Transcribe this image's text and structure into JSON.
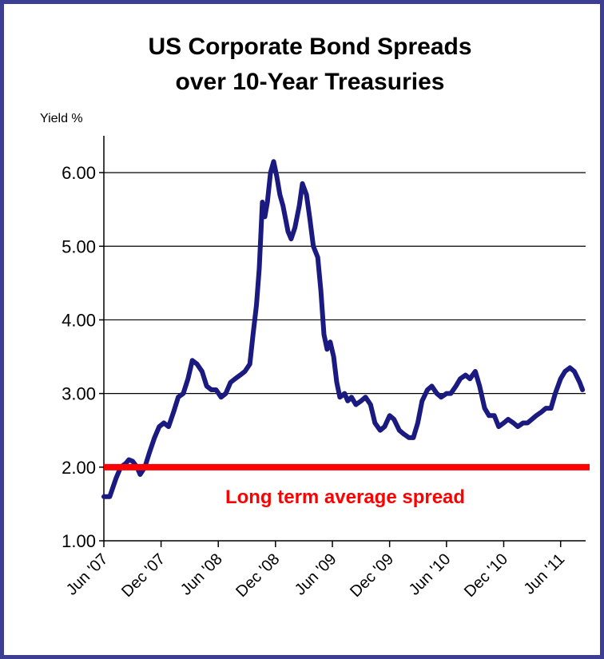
{
  "chart_data": {
    "type": "line",
    "title_line1": "US Corporate Bond Spreads",
    "title_line2": "over 10-Year Treasuries",
    "ylabel": "Yield %",
    "xlabel": "",
    "ylim": [
      1.0,
      6.5
    ],
    "yticks": [
      "1.00",
      "2.00",
      "3.00",
      "4.00",
      "5.00",
      "6.00"
    ],
    "xticks": [
      "Jun '07",
      "Dec '07",
      "Jun '08",
      "Dec '08",
      "Jun '09",
      "Dec '09",
      "Jun '10",
      "Dec '10",
      "Jun '11"
    ],
    "grid": true,
    "series": [
      {
        "color": "#1a1a80",
        "points": [
          [
            "2007-06-01",
            1.6
          ],
          [
            "2007-06-20",
            1.6
          ],
          [
            "2007-07-10",
            1.85
          ],
          [
            "2007-07-25",
            2.0
          ],
          [
            "2007-08-10",
            2.05
          ],
          [
            "2007-08-20",
            2.1
          ],
          [
            "2007-09-01",
            2.08
          ],
          [
            "2007-09-15",
            2.0
          ],
          [
            "2007-09-25",
            1.9
          ],
          [
            "2007-10-10",
            2.0
          ],
          [
            "2007-10-25",
            2.2
          ],
          [
            "2007-11-10",
            2.4
          ],
          [
            "2007-11-25",
            2.55
          ],
          [
            "2007-12-10",
            2.6
          ],
          [
            "2007-12-25",
            2.55
          ],
          [
            "2008-01-10",
            2.75
          ],
          [
            "2008-01-25",
            2.95
          ],
          [
            "2008-02-10",
            3.0
          ],
          [
            "2008-02-25",
            3.2
          ],
          [
            "2008-03-10",
            3.45
          ],
          [
            "2008-03-25",
            3.4
          ],
          [
            "2008-04-10",
            3.3
          ],
          [
            "2008-04-25",
            3.1
          ],
          [
            "2008-05-10",
            3.05
          ],
          [
            "2008-05-25",
            3.05
          ],
          [
            "2008-06-10",
            2.95
          ],
          [
            "2008-06-25",
            3.0
          ],
          [
            "2008-07-10",
            3.15
          ],
          [
            "2008-07-25",
            3.2
          ],
          [
            "2008-08-10",
            3.25
          ],
          [
            "2008-08-25",
            3.3
          ],
          [
            "2008-09-10",
            3.4
          ],
          [
            "2008-09-20",
            3.8
          ],
          [
            "2008-10-01",
            4.2
          ],
          [
            "2008-10-10",
            4.7
          ],
          [
            "2008-10-20",
            5.6
          ],
          [
            "2008-10-28",
            5.4
          ],
          [
            "2008-11-05",
            5.6
          ],
          [
            "2008-11-15",
            6.0
          ],
          [
            "2008-11-25",
            6.15
          ],
          [
            "2008-12-05",
            5.95
          ],
          [
            "2008-12-15",
            5.7
          ],
          [
            "2008-12-25",
            5.55
          ],
          [
            "2009-01-10",
            5.2
          ],
          [
            "2009-01-20",
            5.1
          ],
          [
            "2009-02-01",
            5.25
          ],
          [
            "2009-02-15",
            5.55
          ],
          [
            "2009-02-25",
            5.85
          ],
          [
            "2009-03-10",
            5.7
          ],
          [
            "2009-03-20",
            5.4
          ],
          [
            "2009-04-01",
            5.0
          ],
          [
            "2009-04-15",
            4.85
          ],
          [
            "2009-04-25",
            4.4
          ],
          [
            "2009-05-05",
            3.8
          ],
          [
            "2009-05-15",
            3.6
          ],
          [
            "2009-05-25",
            3.7
          ],
          [
            "2009-06-05",
            3.5
          ],
          [
            "2009-06-15",
            3.15
          ],
          [
            "2009-06-25",
            2.95
          ],
          [
            "2009-07-10",
            3.0
          ],
          [
            "2009-07-20",
            2.9
          ],
          [
            "2009-08-01",
            2.95
          ],
          [
            "2009-08-15",
            2.85
          ],
          [
            "2009-09-01",
            2.9
          ],
          [
            "2009-09-15",
            2.95
          ],
          [
            "2009-10-01",
            2.85
          ],
          [
            "2009-10-15",
            2.6
          ],
          [
            "2009-11-01",
            2.5
          ],
          [
            "2009-11-15",
            2.55
          ],
          [
            "2009-12-01",
            2.7
          ],
          [
            "2009-12-15",
            2.65
          ],
          [
            "2010-01-01",
            2.5
          ],
          [
            "2010-01-15",
            2.45
          ],
          [
            "2010-02-01",
            2.4
          ],
          [
            "2010-02-15",
            2.4
          ],
          [
            "2010-03-01",
            2.6
          ],
          [
            "2010-03-15",
            2.9
          ],
          [
            "2010-04-01",
            3.05
          ],
          [
            "2010-04-15",
            3.1
          ],
          [
            "2010-05-01",
            3.0
          ],
          [
            "2010-05-15",
            2.95
          ],
          [
            "2010-06-01",
            3.0
          ],
          [
            "2010-06-15",
            3.0
          ],
          [
            "2010-07-01",
            3.1
          ],
          [
            "2010-07-15",
            3.2
          ],
          [
            "2010-08-01",
            3.25
          ],
          [
            "2010-08-15",
            3.2
          ],
          [
            "2010-09-01",
            3.3
          ],
          [
            "2010-09-15",
            3.1
          ],
          [
            "2010-10-01",
            2.8
          ],
          [
            "2010-10-15",
            2.7
          ],
          [
            "2010-11-01",
            2.7
          ],
          [
            "2010-11-15",
            2.55
          ],
          [
            "2010-12-01",
            2.6
          ],
          [
            "2010-12-15",
            2.65
          ],
          [
            "2011-01-01",
            2.6
          ],
          [
            "2011-01-15",
            2.55
          ],
          [
            "2011-02-01",
            2.6
          ],
          [
            "2011-02-15",
            2.6
          ],
          [
            "2011-03-01",
            2.65
          ],
          [
            "2011-03-15",
            2.7
          ],
          [
            "2011-04-01",
            2.75
          ],
          [
            "2011-04-15",
            2.8
          ],
          [
            "2011-05-01",
            2.8
          ],
          [
            "2011-05-15",
            3.0
          ],
          [
            "2011-06-01",
            3.2
          ],
          [
            "2011-06-15",
            3.3
          ],
          [
            "2011-07-01",
            3.35
          ],
          [
            "2011-07-15",
            3.3
          ],
          [
            "2011-08-01",
            3.15
          ],
          [
            "2011-08-10",
            3.05
          ]
        ]
      }
    ],
    "reference_line": {
      "value": 2.0,
      "label": "Long term average spread",
      "color": "#ff0000"
    }
  }
}
